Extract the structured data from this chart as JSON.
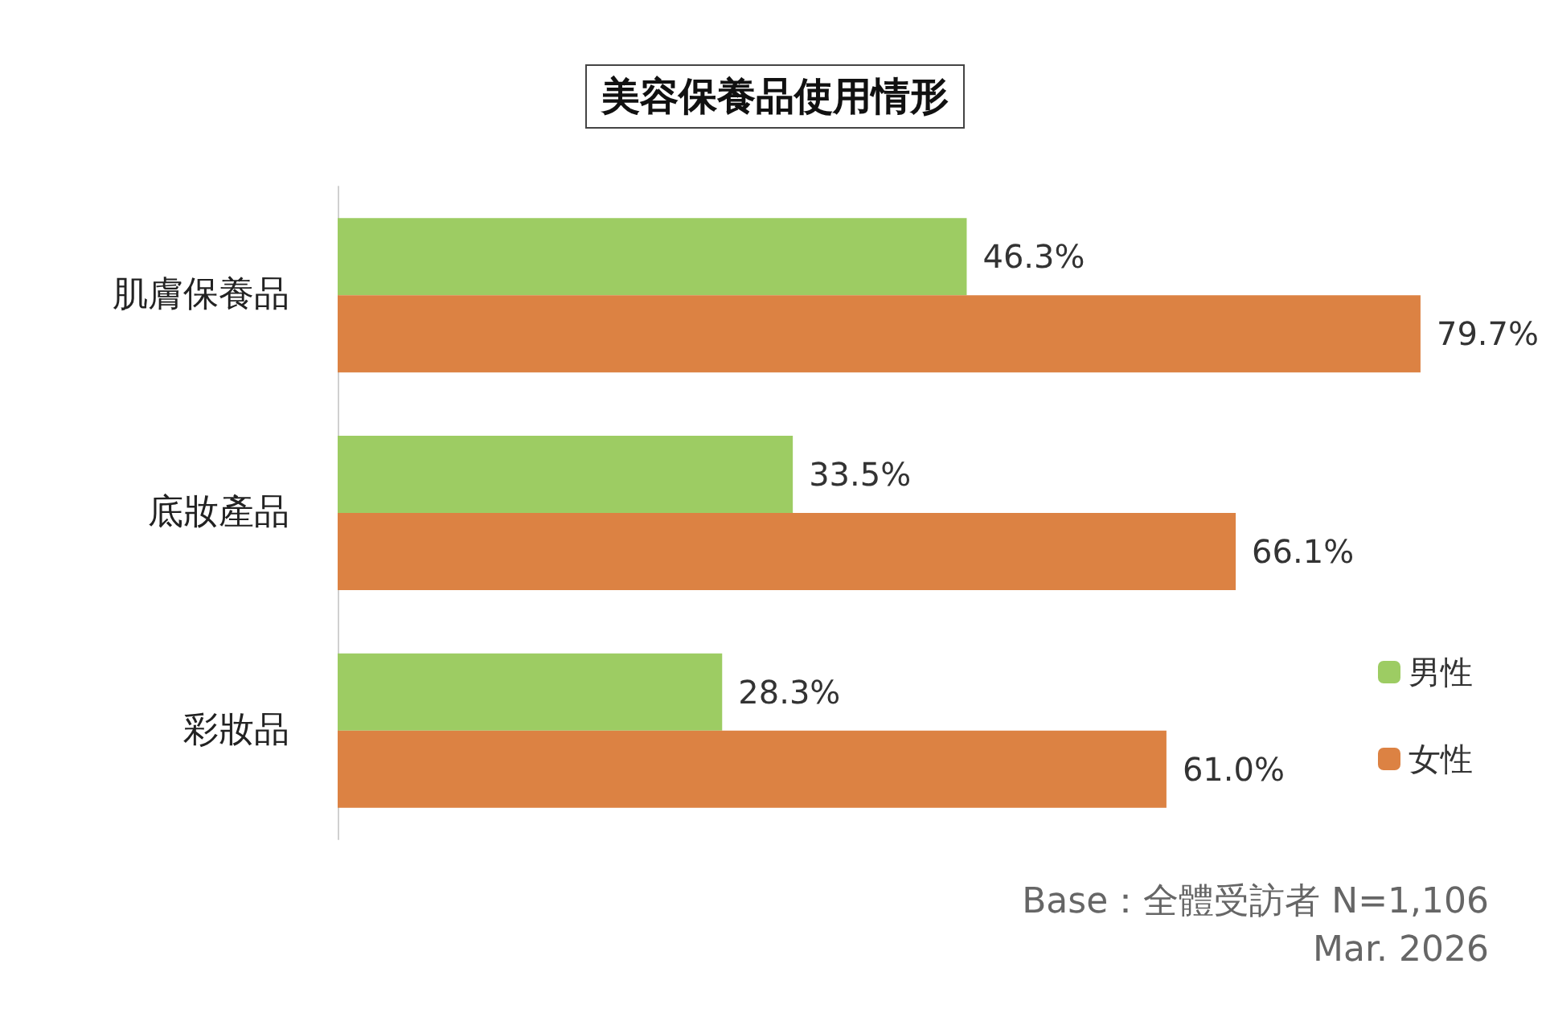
{
  "chart_data": {
    "type": "bar",
    "orientation": "horizontal",
    "title": "美容保養品使用情形",
    "categories": [
      "肌膚保養品",
      "底妝產品",
      "彩妝品"
    ],
    "series": [
      {
        "name": "男性",
        "color": "#9dcc63",
        "values": [
          46.3,
          33.5,
          28.3
        ],
        "value_labels": [
          "46.3%",
          "33.5%",
          "28.3%"
        ]
      },
      {
        "name": "女性",
        "color": "#dc8243",
        "values": [
          79.7,
          66.1,
          61.0
        ],
        "value_labels": [
          "79.7%",
          "66.1%",
          "61.0%"
        ]
      }
    ],
    "legend": "bottom right",
    "grid": false,
    "annotations": [
      "Base：全體受訪者 N=1,106",
      "Mar. 2026"
    ]
  }
}
